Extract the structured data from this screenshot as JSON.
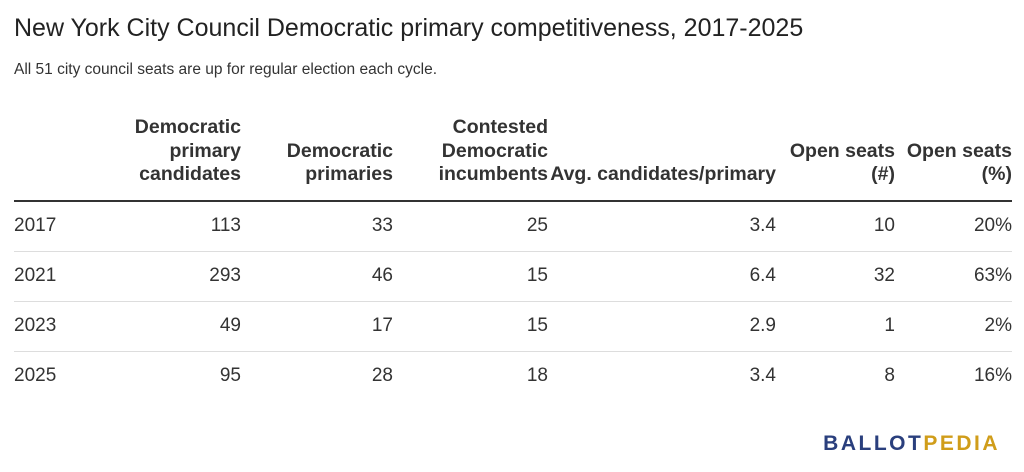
{
  "header": {
    "title": "New York City Council Democratic primary competitiveness, 2017-2025",
    "subtitle": "All 51 city council seats are up for regular election each cycle."
  },
  "chart_data": {
    "type": "table",
    "title": "New York City Council Democratic primary competitiveness, 2017-2025",
    "subtitle": "All 51 city council seats are up for regular election each cycle.",
    "columns": [
      "",
      "Democratic primary candidates",
      "Democratic primaries",
      "Contested Democratic incumbents",
      "Avg. candidates/primary",
      "Open seats (#)",
      "Open seats (%)"
    ],
    "rows": [
      [
        "2017",
        "113",
        "33",
        "25",
        "3.4",
        "10",
        "20%"
      ],
      [
        "2021",
        "293",
        "46",
        "15",
        "6.4",
        "32",
        "63%"
      ],
      [
        "2023",
        "49",
        "17",
        "15",
        "2.9",
        "1",
        "2%"
      ],
      [
        "2025",
        "95",
        "28",
        "18",
        "3.4",
        "8",
        "16%"
      ]
    ]
  },
  "logo": {
    "part1": "BALLOT",
    "part2": "PEDIA",
    "primary_color": "#2a3f7d",
    "accent_color": "#d09d1a"
  }
}
